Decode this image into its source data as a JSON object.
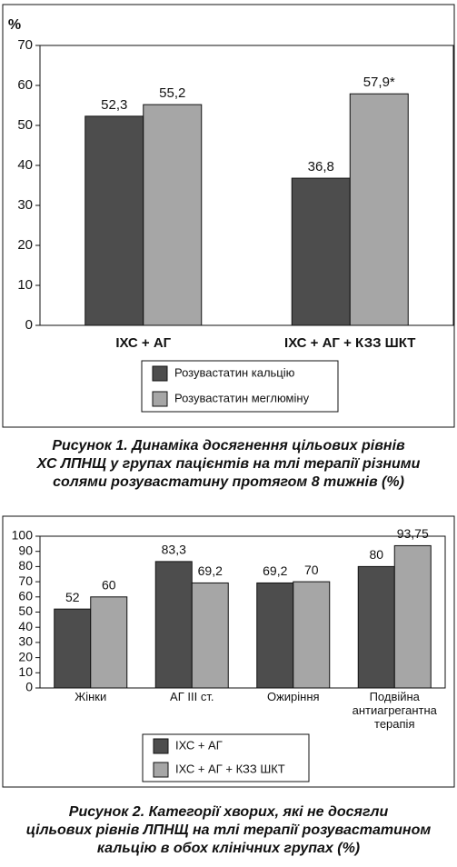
{
  "chart_data": [
    {
      "type": "bar",
      "y_label": "%",
      "categories": [
        "ІХС + АГ",
        "ІХС + АГ + КЗЗ ШКТ"
      ],
      "series": [
        {
          "name": "Розувастатин кальцію",
          "color": "#4d4d4d",
          "values": [
            52.3,
            36.8
          ],
          "value_labels": [
            "52,3",
            "36,8"
          ]
        },
        {
          "name": "Розувастатин меглюміну",
          "color": "#a6a6a6",
          "values": [
            55.2,
            57.9
          ],
          "value_labels": [
            "55,2",
            "57,9*"
          ]
        }
      ],
      "ylim": [
        0,
        70
      ],
      "yticks": [
        0,
        10,
        20,
        30,
        40,
        50,
        60,
        70
      ],
      "caption": [
        "Рисунок 1. Динаміка досягнення цільових рівнів",
        "ХС ЛПНЩ у групах пацієнтів на тлі терапії різними",
        "солями розувастатину протягом 8 тижнів (%)"
      ]
    },
    {
      "type": "bar",
      "categories": [
        "Жінки",
        "АГ ІІІ ст.",
        "Ожиріння",
        "Подвійна антиагрегантна терапія"
      ],
      "series": [
        {
          "name": "ІХС + АГ",
          "color": "#4d4d4d",
          "values": [
            52,
            83.3,
            69.2,
            80
          ],
          "value_labels": [
            "52",
            "83,3",
            "69,2",
            "80"
          ]
        },
        {
          "name": "ІХС + АГ + КЗЗ ШКТ",
          "color": "#a6a6a6",
          "values": [
            60,
            69.2,
            70,
            93.75
          ],
          "value_labels": [
            "60",
            "69,2",
            "70",
            "93,75"
          ]
        }
      ],
      "ylim": [
        0,
        100
      ],
      "yticks": [
        0,
        10,
        20,
        30,
        40,
        50,
        60,
        70,
        80,
        90,
        100
      ],
      "caption": [
        "Рисунок 2. Категорії хворих, які не досягли",
        "цільових рівнів ЛПНЩ на тлі терапії розувастатином",
        "кальцію в обох клінічних групах (%)"
      ]
    }
  ]
}
